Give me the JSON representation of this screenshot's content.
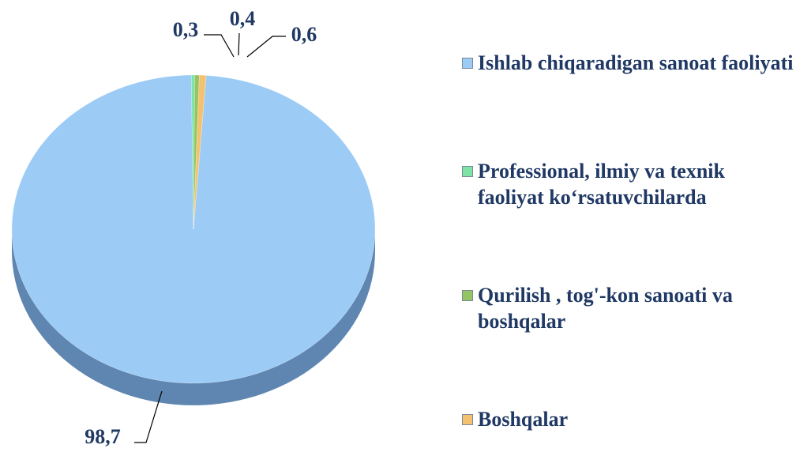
{
  "chart_data": {
    "type": "pie",
    "categories": [
      "Ishlab chiqaradigan sanoat faoliyati",
      "Professional, ilmiy va texnik faoliyat ko‘rsatuvchilarda",
      "Qurilish , tog'-kon sanoati va boshqalar",
      "Boshqalar"
    ],
    "values": [
      98.7,
      0.3,
      0.4,
      0.6
    ],
    "value_labels": [
      "98,7",
      "0,3",
      "0,4",
      "0,6"
    ],
    "colors": [
      "#9ccbf5",
      "#7fe3a6",
      "#95c465",
      "#f4c26f"
    ],
    "legend": "right"
  }
}
